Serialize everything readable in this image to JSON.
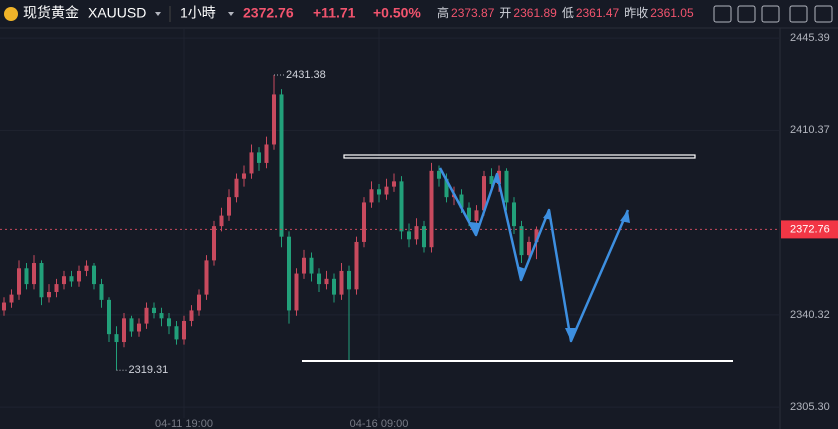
{
  "header": {
    "name": "现货黄金",
    "symbol": "XAUUSD",
    "interval": "1小時",
    "last": "2372.76",
    "change": "+11.71",
    "change_pct": "+0.50%",
    "stats": [
      {
        "label": "高",
        "value": "2373.87"
      },
      {
        "label": "开",
        "value": "2361.89"
      },
      {
        "label": "低",
        "value": "2361.47"
      },
      {
        "label": "昨收",
        "value": "2361.05"
      }
    ]
  },
  "chart_data": {
    "type": "candlestick",
    "up_color": "#c84a5e",
    "down_color": "#22a07a",
    "ylim": [
      2302.3,
      2451.5
    ],
    "yticks": [
      {
        "value": 2305.3,
        "label": "2305.30"
      },
      2340.32,
      2410.37,
      2445.39
    ],
    "categories": [
      null,
      null,
      null,
      null,
      null,
      null,
      null,
      null,
      null,
      null,
      null,
      null,
      null,
      null,
      null,
      null,
      null,
      null,
      null,
      null,
      null,
      null,
      null,
      null,
      "04-11 19:00",
      null,
      null,
      null,
      null,
      null,
      null,
      null,
      null,
      null,
      null,
      null,
      null,
      null,
      null,
      null,
      null,
      null,
      null,
      null,
      null,
      null,
      null,
      null,
      null,
      null,
      "04-16 09:00",
      null,
      null,
      null,
      null,
      null,
      null,
      null,
      null,
      null,
      null,
      null,
      null,
      null,
      null,
      null,
      null,
      null,
      null,
      null,
      null,
      null
    ],
    "open": [
      2342,
      2345,
      2348,
      2358,
      2352,
      2360,
      2347,
      2349,
      2352,
      2355,
      2353,
      2357,
      2359,
      2352,
      2346,
      2333,
      2330,
      2339,
      2334,
      2337,
      2343,
      2341,
      2339,
      2336,
      2331,
      2338,
      2342,
      2348,
      2361,
      2374,
      2378,
      2385,
      2392,
      2394,
      2402,
      2398,
      2405,
      2424,
      2370,
      2342,
      2356,
      2362,
      2356,
      2352,
      2354,
      2348,
      2357,
      2350,
      2368,
      2383,
      2388,
      2386,
      2389,
      2391,
      2372,
      2369,
      2374,
      2366,
      2395,
      2392,
      2385,
      2386,
      2381,
      2376,
      2380,
      2393,
      2390,
      2395,
      2383,
      2374,
      2363,
      2368
    ],
    "high": [
      2347,
      2350,
      2361,
      2360,
      2363,
      2361,
      2352,
      2354,
      2357,
      2357,
      2359,
      2361,
      2360,
      2354,
      2347,
      2336,
      2341,
      2340,
      2339,
      2345,
      2345,
      2343,
      2341,
      2338,
      2340,
      2344,
      2350,
      2363,
      2376,
      2381,
      2388,
      2394,
      2397,
      2405,
      2404,
      2408,
      2431.38,
      2426,
      2372,
      2358,
      2365,
      2364,
      2358,
      2357,
      2356,
      2360,
      2359,
      2370,
      2385,
      2391,
      2390,
      2392,
      2394,
      2393,
      2375,
      2377,
      2376,
      2398,
      2397,
      2394,
      2389,
      2388,
      2383,
      2382,
      2395,
      2396,
      2397,
      2396,
      2385,
      2376,
      2370,
      2373.87
    ],
    "low": [
      2340,
      2343,
      2346,
      2350,
      2350,
      2344,
      2345,
      2347,
      2350,
      2351,
      2351,
      2355,
      2350,
      2343,
      2330,
      2319.31,
      2328,
      2332,
      2332,
      2335,
      2339,
      2336,
      2333,
      2329,
      2329,
      2336,
      2340,
      2346,
      2359,
      2372,
      2376,
      2383,
      2389,
      2392,
      2395,
      2396,
      2403,
      2366,
      2337,
      2340,
      2354,
      2353,
      2349,
      2350,
      2345,
      2346,
      2323,
      2348,
      2366,
      2381,
      2383,
      2384,
      2387,
      2369,
      2366,
      2367,
      2364,
      2364,
      2389,
      2383,
      2382,
      2379,
      2374,
      2373,
      2378,
      2388,
      2387,
      2380,
      2371,
      2360,
      2361,
      2361.47
    ],
    "close": [
      2345,
      2348,
      2358,
      2352,
      2360,
      2347,
      2349,
      2352,
      2355,
      2353,
      2357,
      2359,
      2352,
      2346,
      2333,
      2330,
      2339,
      2334,
      2337,
      2343,
      2341,
      2339,
      2336,
      2331,
      2338,
      2342,
      2348,
      2361,
      2374,
      2378,
      2385,
      2392,
      2394,
      2402,
      2398,
      2405,
      2424,
      2370,
      2342,
      2356,
      2362,
      2356,
      2352,
      2354,
      2348,
      2357,
      2350,
      2368,
      2383,
      2388,
      2386,
      2389,
      2391,
      2372,
      2369,
      2374,
      2366,
      2395,
      2392,
      2385,
      2386,
      2381,
      2376,
      2380,
      2393,
      2390,
      2395,
      2383,
      2374,
      2363,
      2368,
      2372.76
    ]
  }
}
